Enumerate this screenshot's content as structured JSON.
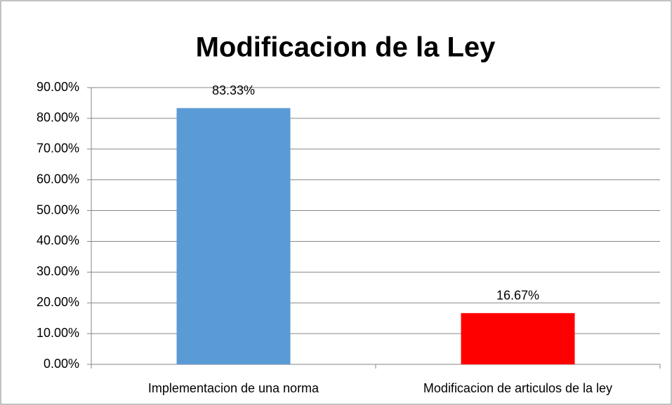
{
  "chart_data": {
    "type": "bar",
    "title": "Modificacion de la Ley",
    "categories": [
      "Implementacion de una norma",
      "Modificacion de articulos de la ley"
    ],
    "values": [
      83.33,
      16.67
    ],
    "value_labels": [
      "83.33%",
      "16.67%"
    ],
    "colors": [
      "#5b9bd5",
      "#ff0000"
    ],
    "ylim": [
      0,
      90
    ],
    "yticks": [
      {
        "value": 0,
        "label": "0.00%"
      },
      {
        "value": 10,
        "label": "10.00%"
      },
      {
        "value": 20,
        "label": "20.00%"
      },
      {
        "value": 30,
        "label": "30.00%"
      },
      {
        "value": 40,
        "label": "40.00%"
      },
      {
        "value": 50,
        "label": "50.00%"
      },
      {
        "value": 60,
        "label": "60.00%"
      },
      {
        "value": 70,
        "label": "70.00%"
      },
      {
        "value": 80,
        "label": "80.00%"
      },
      {
        "value": 90,
        "label": "90.00%"
      }
    ],
    "grid": true
  }
}
